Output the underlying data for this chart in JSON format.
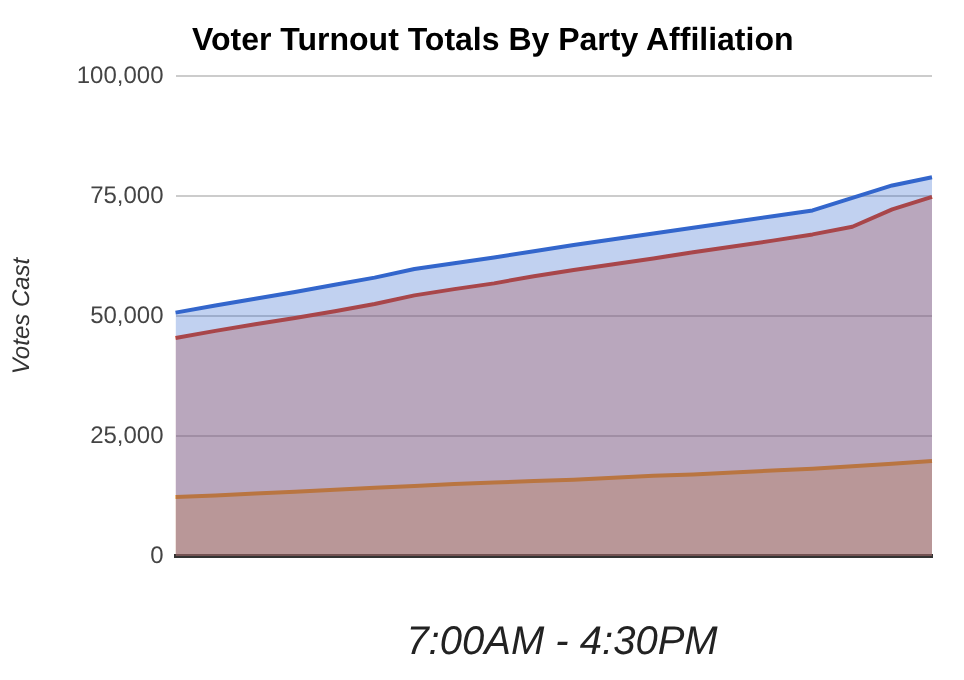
{
  "chart_data": {
    "type": "area",
    "title": "Voter Turnout Totals By Party Affiliation",
    "xlabel": "7:00AM - 4:30PM",
    "ylabel": "Votes Cast",
    "categories": [
      null,
      null,
      null,
      null,
      null,
      null,
      null,
      null,
      null,
      null,
      null,
      null,
      null,
      null,
      null,
      null,
      null,
      null,
      null,
      null
    ],
    "series": [
      {
        "color": "#3366cc",
        "values": [
          50700,
          52200,
          53600,
          55000,
          56500,
          58000,
          59800,
          61000,
          62200,
          63500,
          64800,
          66000,
          67200,
          68400,
          69600,
          70800,
          72000,
          74600,
          77200,
          78900
        ]
      },
      {
        "color": "#dc3912",
        "values": [
          45400,
          46900,
          48300,
          49600,
          51000,
          52500,
          54300,
          55600,
          56800,
          58300,
          59600,
          60800,
          62000,
          63300,
          64500,
          65700,
          67000,
          68600,
          72200,
          74800
        ]
      },
      {
        "color": "#ff9900",
        "values": [
          12300,
          12600,
          13000,
          13400,
          13800,
          14200,
          14600,
          15000,
          15300,
          15600,
          15900,
          16300,
          16700,
          17000,
          17400,
          17800,
          18200,
          18700,
          19200,
          19800
        ]
      }
    ],
    "ylim": [
      0,
      100000
    ],
    "yticks": [
      {
        "value": 0,
        "label": "0"
      },
      {
        "value": 25000,
        "label": "25,000"
      },
      {
        "value": 50000,
        "label": "50,000"
      },
      {
        "value": 75000,
        "label": "75,000"
      },
      {
        "value": 100000,
        "label": "100,000"
      }
    ],
    "grid": "y",
    "tick_labels": "y",
    "legend": false
  }
}
